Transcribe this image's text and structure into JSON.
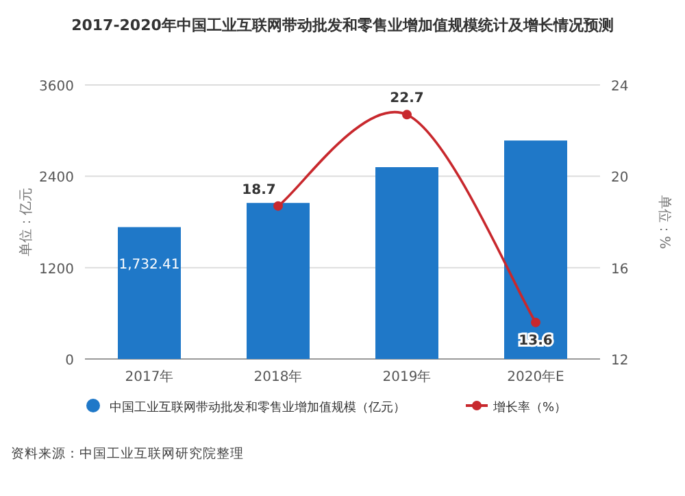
{
  "chart_data": {
    "type": "bar",
    "title": "2017-2020年中国工业互联网带动批发和零售业增加值规模统计及增长情况预测",
    "categories": [
      "2017年",
      "2018年",
      "2019年",
      "2020年E"
    ],
    "series": [
      {
        "name": "中国工业互联网带动批发和零售业增加值规模（亿元）",
        "color": "#1f78c8",
        "values": [
          1732.41,
          2050,
          2520,
          2870
        ],
        "value_labels": [
          "1,732.41",
          null,
          null,
          null
        ]
      },
      {
        "name": "增长率（%）",
        "type": "line",
        "axis": "y2",
        "color": "#c8282d",
        "values": [
          null,
          18.7,
          22.7,
          13.6
        ],
        "value_labels": [
          null,
          "18.7",
          "22.7",
          "13.6"
        ]
      }
    ],
    "ylabel": "单位：亿元",
    "y2label": "单位：%",
    "ylim": [
      0,
      3600
    ],
    "yticks": [
      0,
      1200,
      2400,
      3600
    ],
    "y2lim": [
      12,
      24
    ],
    "y2ticks": [
      12,
      16,
      20,
      24
    ],
    "grid": "y",
    "legend": "bottom",
    "marker": "circle",
    "annotations": [
      "资料来源：中国工业互联网研究院整理"
    ]
  }
}
